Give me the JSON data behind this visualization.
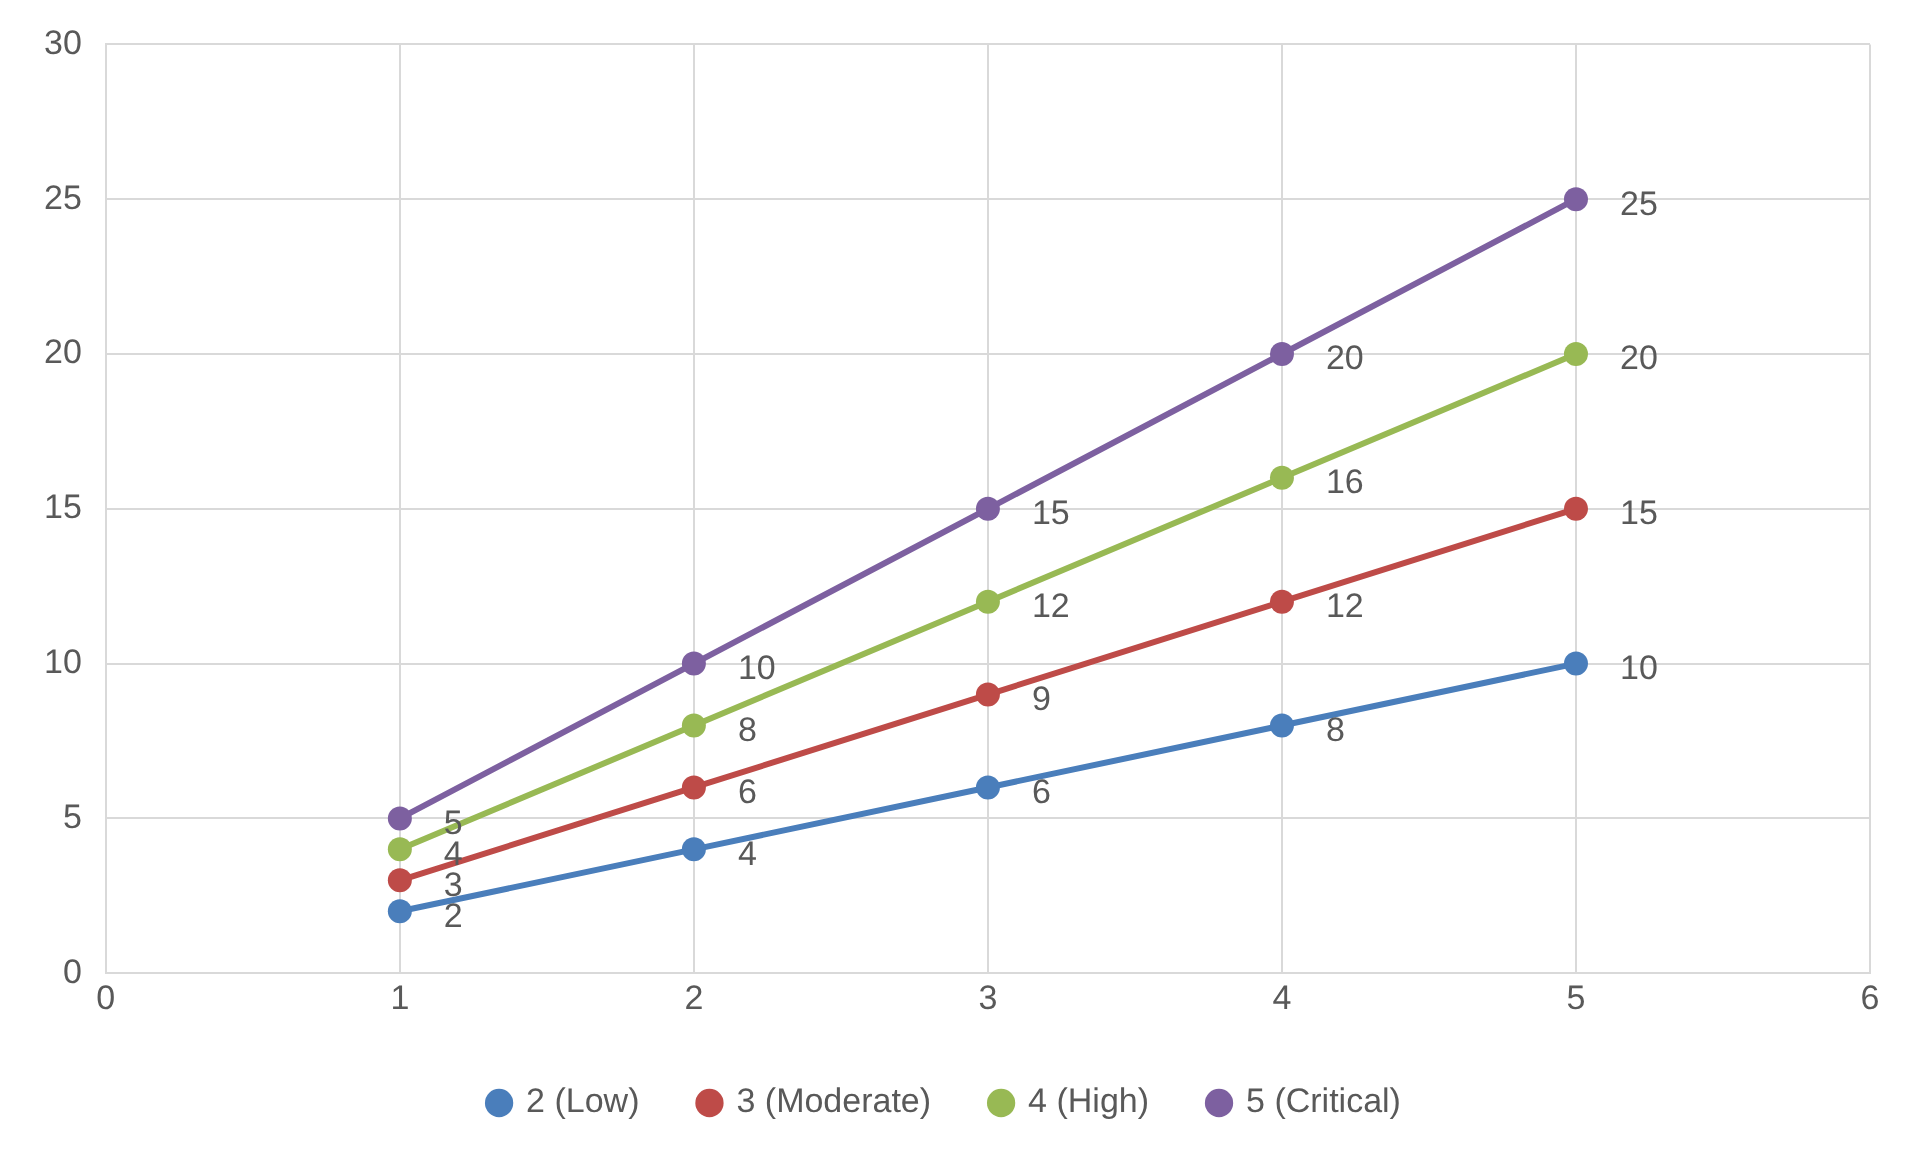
{
  "chart_data": {
    "type": "line",
    "x": [
      1,
      2,
      3,
      4,
      5
    ],
    "series": [
      {
        "name": "2 (Low)",
        "color": "#4a7ebb",
        "values": [
          2,
          4,
          6,
          8,
          10
        ]
      },
      {
        "name": "3 (Moderate)",
        "color": "#be4b48",
        "values": [
          3,
          6,
          9,
          12,
          15
        ]
      },
      {
        "name": "4 (High)",
        "color": "#98b954",
        "values": [
          4,
          8,
          12,
          16,
          20
        ]
      },
      {
        "name": "5 (Critical)",
        "color": "#7d60a0",
        "values": [
          5,
          10,
          15,
          20,
          25
        ]
      }
    ],
    "xlim": [
      0,
      6
    ],
    "xticks": [
      0,
      1,
      2,
      3,
      4,
      5,
      6
    ],
    "ylim": [
      0,
      30
    ],
    "yticks": [
      0,
      5,
      10,
      15,
      20,
      25,
      30
    ],
    "grid": true,
    "legend": "bottom",
    "marker": "circle",
    "line_style": "solid",
    "data_labels": true
  }
}
